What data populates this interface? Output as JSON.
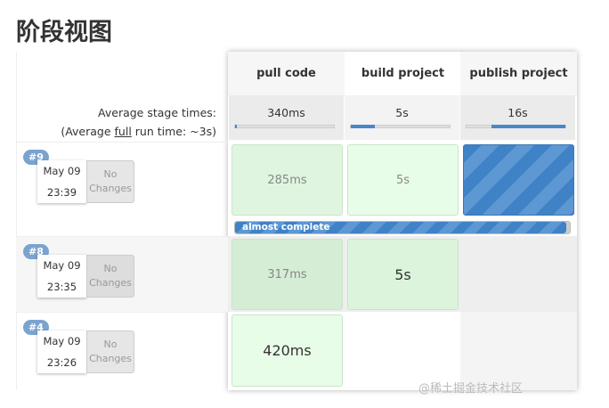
{
  "page_title": "阶段视图",
  "average": {
    "label": "Average stage times:",
    "full_prefix": "(Average ",
    "full_word": "full",
    "full_suffix": " run time: ~3s)"
  },
  "stages": [
    {
      "name": "pull code",
      "avg": "340ms",
      "avg_fraction": 0.02
    },
    {
      "name": "build project",
      "avg": "5s",
      "avg_fraction": 0.24
    },
    {
      "name": "publish project",
      "avg": "16s",
      "avg_fraction": 0.75
    }
  ],
  "builds": [
    {
      "number": "#9",
      "date": "May 09",
      "time": "23:39",
      "changes": "No Changes",
      "stages": [
        "285ms",
        "5s",
        ""
      ],
      "status": "running",
      "progress_label": "almost complete",
      "progress": 0.99
    },
    {
      "number": "#8",
      "date": "May 09",
      "time": "23:35",
      "changes": "No Changes",
      "stages": [
        "317ms",
        "5s",
        ""
      ]
    },
    {
      "number": "#4",
      "date": "May 09",
      "time": "23:26",
      "changes": "No Changes",
      "stages": [
        "420ms",
        "",
        ""
      ]
    }
  ],
  "watermark": "@稀土掘金技术社区",
  "colors": {
    "success": "#dff5df",
    "running": "#4a87c8",
    "badge": "#7ba3cf"
  }
}
